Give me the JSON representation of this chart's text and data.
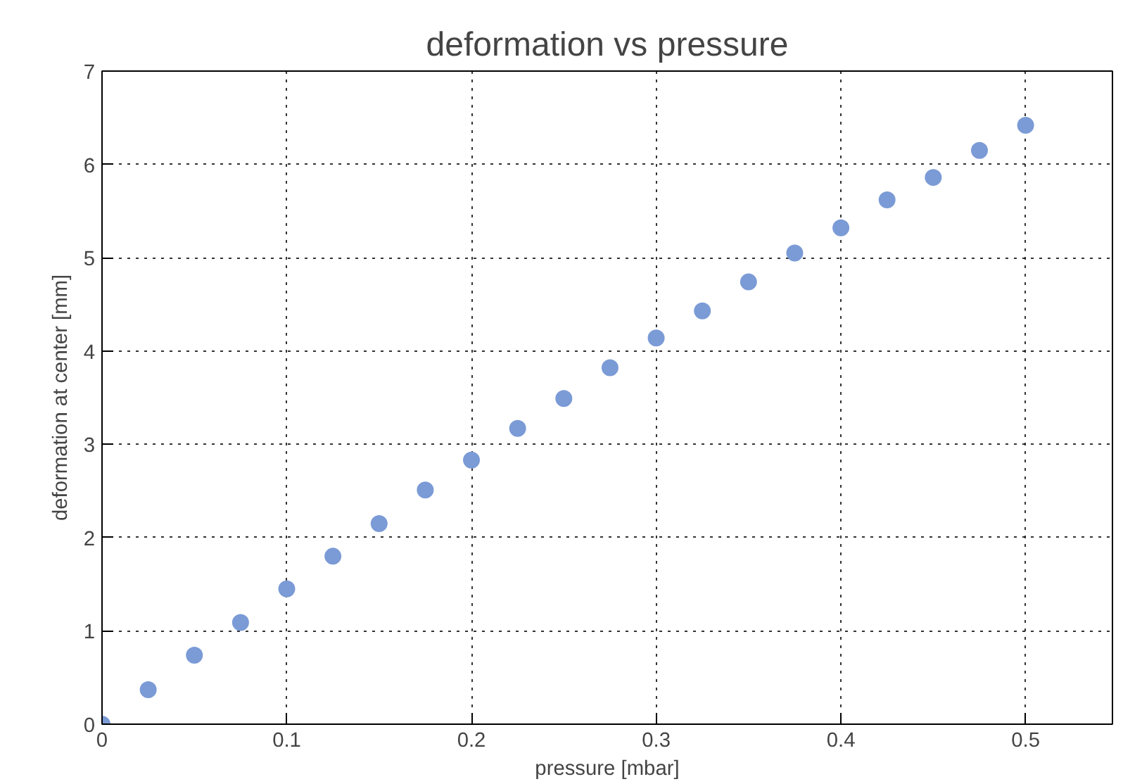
{
  "chart_data": {
    "type": "scatter",
    "title": "deformation vs pressure",
    "xlabel": "pressure [mbar]",
    "ylabel": "deformation at center [mm]",
    "x": [
      0,
      0.025,
      0.05,
      0.075,
      0.1,
      0.125,
      0.15,
      0.175,
      0.2,
      0.225,
      0.25,
      0.275,
      0.3,
      0.325,
      0.35,
      0.375,
      0.4,
      0.425,
      0.45,
      0.475,
      0.5
    ],
    "series": [
      {
        "color": "#7b9bd6",
        "values": [
          0,
          0.37,
          0.74,
          1.09,
          1.45,
          1.8,
          2.15,
          2.51,
          2.83,
          3.17,
          3.49,
          3.82,
          4.14,
          4.43,
          4.74,
          5.05,
          5.32,
          5.62,
          5.86,
          6.15,
          6.42
        ]
      }
    ],
    "xlim": [
      0,
      0.547
    ],
    "ylim": [
      0,
      7
    ],
    "xticks": [
      0,
      0.1,
      0.2,
      0.3,
      0.4,
      0.5
    ],
    "yticks": [
      0,
      1,
      2,
      3,
      4,
      5,
      6,
      7
    ],
    "grid": true,
    "marker": "circle"
  }
}
